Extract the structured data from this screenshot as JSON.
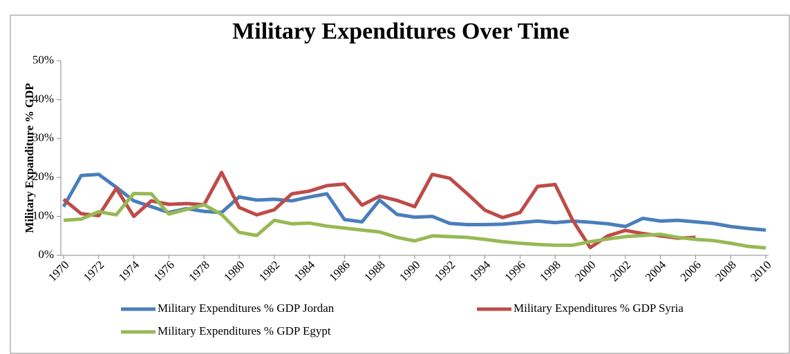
{
  "chart_data": {
    "type": "line",
    "title": "Military Expenditures Over Time",
    "y_label": "Military Expanditure % GDP",
    "x": [
      1970,
      1971,
      1972,
      1973,
      1974,
      1975,
      1976,
      1977,
      1978,
      1979,
      1980,
      1981,
      1982,
      1983,
      1984,
      1985,
      1986,
      1987,
      1988,
      1989,
      1990,
      1991,
      1992,
      1993,
      1994,
      1995,
      1996,
      1997,
      1998,
      1999,
      2000,
      2001,
      2002,
      2003,
      2004,
      2005,
      2006,
      2007,
      2008,
      2009,
      2010
    ],
    "xlim": [
      1970,
      2010
    ],
    "xticks": [
      1970,
      1972,
      1974,
      1976,
      1978,
      1980,
      1982,
      1984,
      1986,
      1988,
      1990,
      1992,
      1994,
      1996,
      1998,
      2000,
      2002,
      2004,
      2006,
      2008,
      2010
    ],
    "ylim": [
      0,
      50
    ],
    "yticks": [
      {
        "value": 0,
        "label": "0%"
      },
      {
        "value": 10,
        "label": "10%"
      },
      {
        "value": 20,
        "label": "20%"
      },
      {
        "value": 30,
        "label": "30%"
      },
      {
        "value": 40,
        "label": "40%"
      },
      {
        "value": 50,
        "label": "50%"
      }
    ],
    "grid": false,
    "legend": "bottom",
    "series": [
      {
        "name": "Military Expenditures % GDP Jordan",
        "color": "#4a7ebb",
        "values": [
          12.5,
          20.5,
          20.8,
          17.5,
          14,
          12.5,
          11,
          12,
          11.3,
          11,
          15,
          14.2,
          14.4,
          14,
          15,
          15.8,
          9.2,
          8.6,
          14.2,
          10.5,
          9.8,
          10,
          8.2,
          7.9,
          7.9,
          8,
          8.4,
          8.8,
          8.4,
          8.8,
          8.5,
          8.1,
          7.4,
          9.5,
          8.8,
          9,
          8.6,
          8.2,
          7.4,
          6.9,
          6.5
        ]
      },
      {
        "name": "Military Expenditures % GDP Syria",
        "color": "#be4b48",
        "values": [
          14.4,
          10.7,
          10.2,
          17.2,
          10,
          14,
          13.1,
          13.3,
          13,
          21.3,
          12.3,
          10.4,
          11.7,
          15.8,
          16.5,
          17.9,
          18.3,
          12.9,
          15.2,
          14.1,
          12.5,
          20.8,
          19.8,
          15.8,
          11.6,
          9.7,
          11,
          17.7,
          18.2,
          9,
          2,
          5,
          6.4,
          5.6,
          5,
          4.4,
          4.6,
          null,
          null,
          null,
          null
        ]
      },
      {
        "name": "Military Expenditures % GDP Egypt",
        "color": "#98b954",
        "values": [
          9,
          9.3,
          11.2,
          10.4,
          15.9,
          15.8,
          10.6,
          11.8,
          13,
          10.5,
          5.9,
          5.1,
          9,
          8.1,
          8.3,
          7.5,
          7,
          6.5,
          6,
          4.6,
          3.7,
          5,
          4.8,
          4.6,
          4.1,
          3.5,
          3.1,
          2.8,
          2.6,
          2.6,
          3.5,
          4.2,
          4.8,
          5.1,
          5.4,
          4.6,
          4.1,
          3.8,
          3.1,
          2.3,
          1.9
        ]
      }
    ]
  }
}
